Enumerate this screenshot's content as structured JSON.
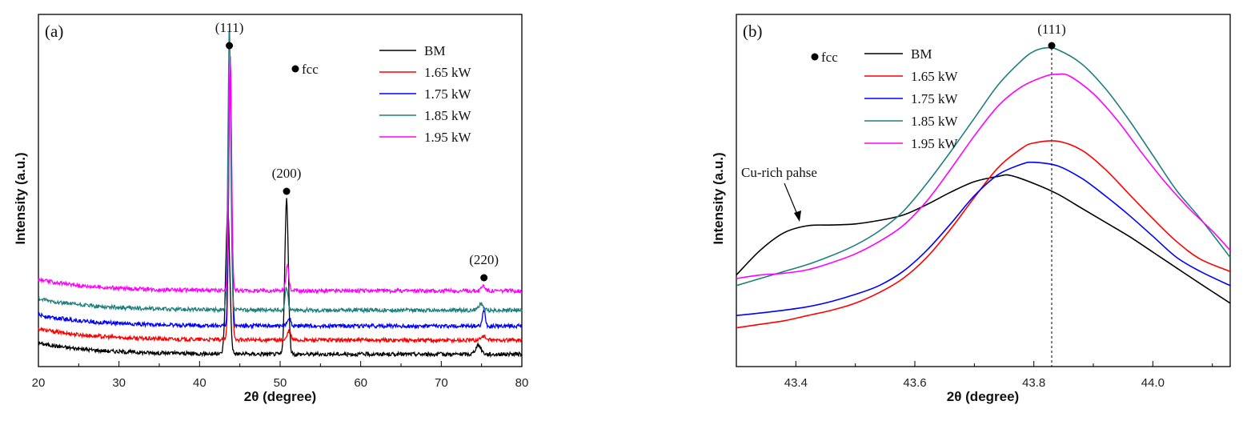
{
  "chart_data": [
    {
      "type": "line",
      "panel_label": "(a)",
      "xlabel": "2θ (degree)",
      "ylabel": "Intensity (a.u.)",
      "xlim": [
        20,
        80
      ],
      "ylim": [
        0,
        100
      ],
      "x_ticks": [
        "20",
        "30",
        "40",
        "50",
        "60",
        "70",
        "80"
      ],
      "y_ticks_shown": false,
      "legend_position": "top-right",
      "marker_legend": "fcc",
      "peaks": [
        {
          "label": "(111)",
          "x": 43.7
        },
        {
          "label": "(200)",
          "x": 50.8
        },
        {
          "label": "(220)",
          "x": 75.3
        }
      ],
      "series": [
        {
          "name": "BM",
          "color": "#000000",
          "baseline": 3.5,
          "peaks": [
            {
              "x": 43.5,
              "h": 41,
              "w": 0.35
            },
            {
              "x": 50.8,
              "h": 44,
              "w": 0.3
            },
            {
              "x": 74.6,
              "h": 2.5,
              "w": 0.5
            }
          ]
        },
        {
          "name": "1.65 kW",
          "color": "#ff0000",
          "baseline": 7.5,
          "peaks": [
            {
              "x": 43.8,
              "h": 78,
              "w": 0.25
            },
            {
              "x": 51.1,
              "h": 2.5,
              "w": 0.3
            },
            {
              "x": 75.2,
              "h": 1.2,
              "w": 0.4
            }
          ]
        },
        {
          "name": "1.75 kW",
          "color": "#0000ff",
          "baseline": 11.5,
          "peaks": [
            {
              "x": 43.8,
              "h": 76,
              "w": 0.25
            },
            {
              "x": 51.1,
              "h": 2.5,
              "w": 0.3
            },
            {
              "x": 75.3,
              "h": 4.5,
              "w": 0.25
            }
          ]
        },
        {
          "name": "1.85 kW",
          "color": "#1f7f7f",
          "baseline": 16.0,
          "peaks": [
            {
              "x": 43.7,
              "h": 80,
              "w": 0.25
            },
            {
              "x": 50.8,
              "h": 6.5,
              "w": 0.25
            },
            {
              "x": 74.9,
              "h": 1.8,
              "w": 0.4
            }
          ]
        },
        {
          "name": "1.95 kW",
          "color": "#ff00ff",
          "baseline": 21.5,
          "peaks": [
            {
              "x": 43.8,
              "h": 65,
              "w": 0.25
            },
            {
              "x": 50.9,
              "h": 7.5,
              "w": 0.25
            },
            {
              "x": 75.2,
              "h": 1.5,
              "w": 0.35
            }
          ]
        }
      ]
    },
    {
      "type": "line",
      "panel_label": "(b)",
      "xlabel": "2θ (degree)",
      "ylabel": "Intensity (a.u.)",
      "xlim": [
        43.3,
        44.13
      ],
      "ylim": [
        0,
        100
      ],
      "x_ticks": [
        "43.4",
        "43.6",
        "43.8",
        "44.0"
      ],
      "y_ticks_shown": false,
      "legend_position": "top-center",
      "marker_legend": "fcc",
      "peak_label": "(111)",
      "reference_line_x": 43.83,
      "annotation": "Cu-rich pahse",
      "series": [
        {
          "name": "BM",
          "color": "#000000",
          "x": [
            43.3,
            43.34,
            43.38,
            43.42,
            43.46,
            43.5,
            43.54,
            43.58,
            43.62,
            43.66,
            43.7,
            43.74,
            43.76,
            43.8,
            43.84,
            43.88,
            43.92,
            43.96,
            44.0,
            44.04,
            44.08,
            44.13
          ],
          "y": [
            26,
            33,
            38,
            40,
            40.2,
            40.5,
            41.5,
            43,
            46,
            49.5,
            52.5,
            54,
            54.3,
            52,
            49,
            45,
            41,
            37,
            32.5,
            28,
            23.5,
            18
          ]
        },
        {
          "name": "1.65 kW",
          "color": "#ff0000",
          "x": [
            43.3,
            43.34,
            43.38,
            43.42,
            43.46,
            43.5,
            43.54,
            43.58,
            43.62,
            43.66,
            43.7,
            43.74,
            43.78,
            43.8,
            43.84,
            43.88,
            43.92,
            43.96,
            44.0,
            44.04,
            44.08,
            44.13
          ],
          "y": [
            11,
            12,
            13,
            14.5,
            16,
            18,
            21,
            25,
            31,
            39,
            48,
            56.5,
            62,
            63.5,
            64,
            61.5,
            56,
            49,
            42,
            35.5,
            30.5,
            27
          ]
        },
        {
          "name": "1.75 kW",
          "color": "#0000ff",
          "x": [
            43.3,
            43.34,
            43.38,
            43.42,
            43.46,
            43.5,
            43.54,
            43.58,
            43.62,
            43.66,
            43.7,
            43.74,
            43.78,
            43.8,
            43.84,
            43.88,
            43.92,
            43.96,
            44.0,
            44.04,
            44.08,
            44.13
          ],
          "y": [
            14.5,
            15.2,
            16,
            17,
            18.5,
            20.5,
            23,
            27,
            33,
            40.5,
            48.5,
            54.5,
            57.5,
            58,
            57,
            53.5,
            48.5,
            43,
            37,
            31,
            27,
            23
          ]
        },
        {
          "name": "1.85 kW",
          "color": "#1f7f7f",
          "x": [
            43.3,
            43.34,
            43.38,
            43.42,
            43.46,
            43.5,
            43.54,
            43.58,
            43.62,
            43.66,
            43.7,
            43.74,
            43.78,
            43.8,
            43.82,
            43.84,
            43.88,
            43.92,
            43.96,
            44.0,
            44.04,
            44.08,
            44.13
          ],
          "y": [
            23,
            25,
            27,
            29,
            31.5,
            34.5,
            38.5,
            44,
            52,
            61,
            70.5,
            80,
            87,
            89.5,
            90.5,
            90,
            86,
            79,
            70,
            60,
            50,
            42,
            31
          ]
        },
        {
          "name": "1.95 kW",
          "color": "#ff00ff",
          "x": [
            43.3,
            43.34,
            43.38,
            43.42,
            43.46,
            43.5,
            43.54,
            43.58,
            43.62,
            43.66,
            43.7,
            43.74,
            43.78,
            43.82,
            43.84,
            43.86,
            43.9,
            43.94,
            43.98,
            44.02,
            44.06,
            44.1,
            44.13
          ],
          "y": [
            25,
            26,
            26.5,
            27.5,
            29.5,
            32,
            35.5,
            40,
            47,
            56,
            65.5,
            74,
            79.5,
            82.5,
            83,
            82.5,
            77.5,
            70,
            61,
            52.5,
            45,
            38.5,
            33
          ]
        }
      ]
    }
  ]
}
